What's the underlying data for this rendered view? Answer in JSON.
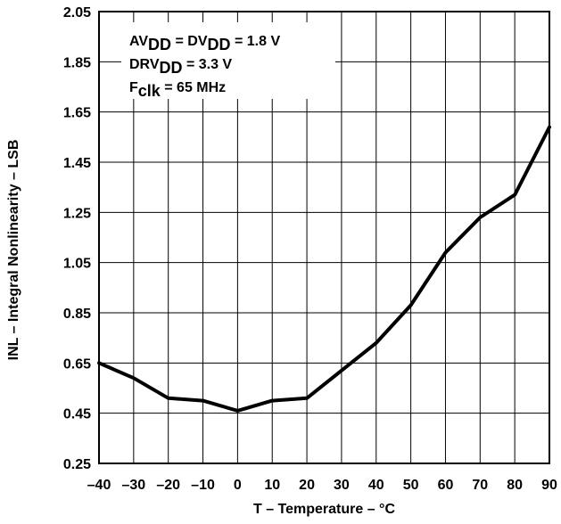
{
  "chart_data": {
    "type": "line",
    "xlabel": "T – Temperature – °C",
    "ylabel": "INL – Integral Nonlinearity – LSB",
    "xlim": [
      -40,
      90
    ],
    "ylim": [
      0.25,
      2.05
    ],
    "x_ticks": [
      "–40",
      "–30",
      "–20",
      "–10",
      "0",
      "10",
      "20",
      "30",
      "40",
      "50",
      "60",
      "70",
      "80",
      "90"
    ],
    "y_ticks": [
      "2.05",
      "1.85",
      "1.65",
      "1.45",
      "1.25",
      "1.05",
      "0.85",
      "0.65",
      "0.45",
      "0.25"
    ],
    "grid": true,
    "annotations": [
      {
        "parts": [
          [
            "AV",
            ""
          ],
          [
            "DD",
            "sub"
          ],
          [
            " = DV",
            ""
          ],
          [
            "DD",
            "sub"
          ],
          [
            " = 1.8 V",
            ""
          ]
        ]
      },
      {
        "parts": [
          [
            "DRV",
            ""
          ],
          [
            "DD",
            "sub"
          ],
          [
            " = 3.3 V",
            ""
          ]
        ]
      },
      {
        "parts": [
          [
            "F",
            ""
          ],
          [
            "clk",
            "sub"
          ],
          [
            " = 65 MHz",
            ""
          ]
        ]
      }
    ],
    "series": [
      {
        "x": [
          -40,
          -30,
          -20,
          -10,
          0,
          10,
          20,
          30,
          40,
          50,
          60,
          70,
          80,
          90
        ],
        "y": [
          0.65,
          0.59,
          0.51,
          0.5,
          0.46,
          0.5,
          0.51,
          0.62,
          0.73,
          0.88,
          1.09,
          1.23,
          1.32,
          1.59
        ]
      }
    ]
  }
}
